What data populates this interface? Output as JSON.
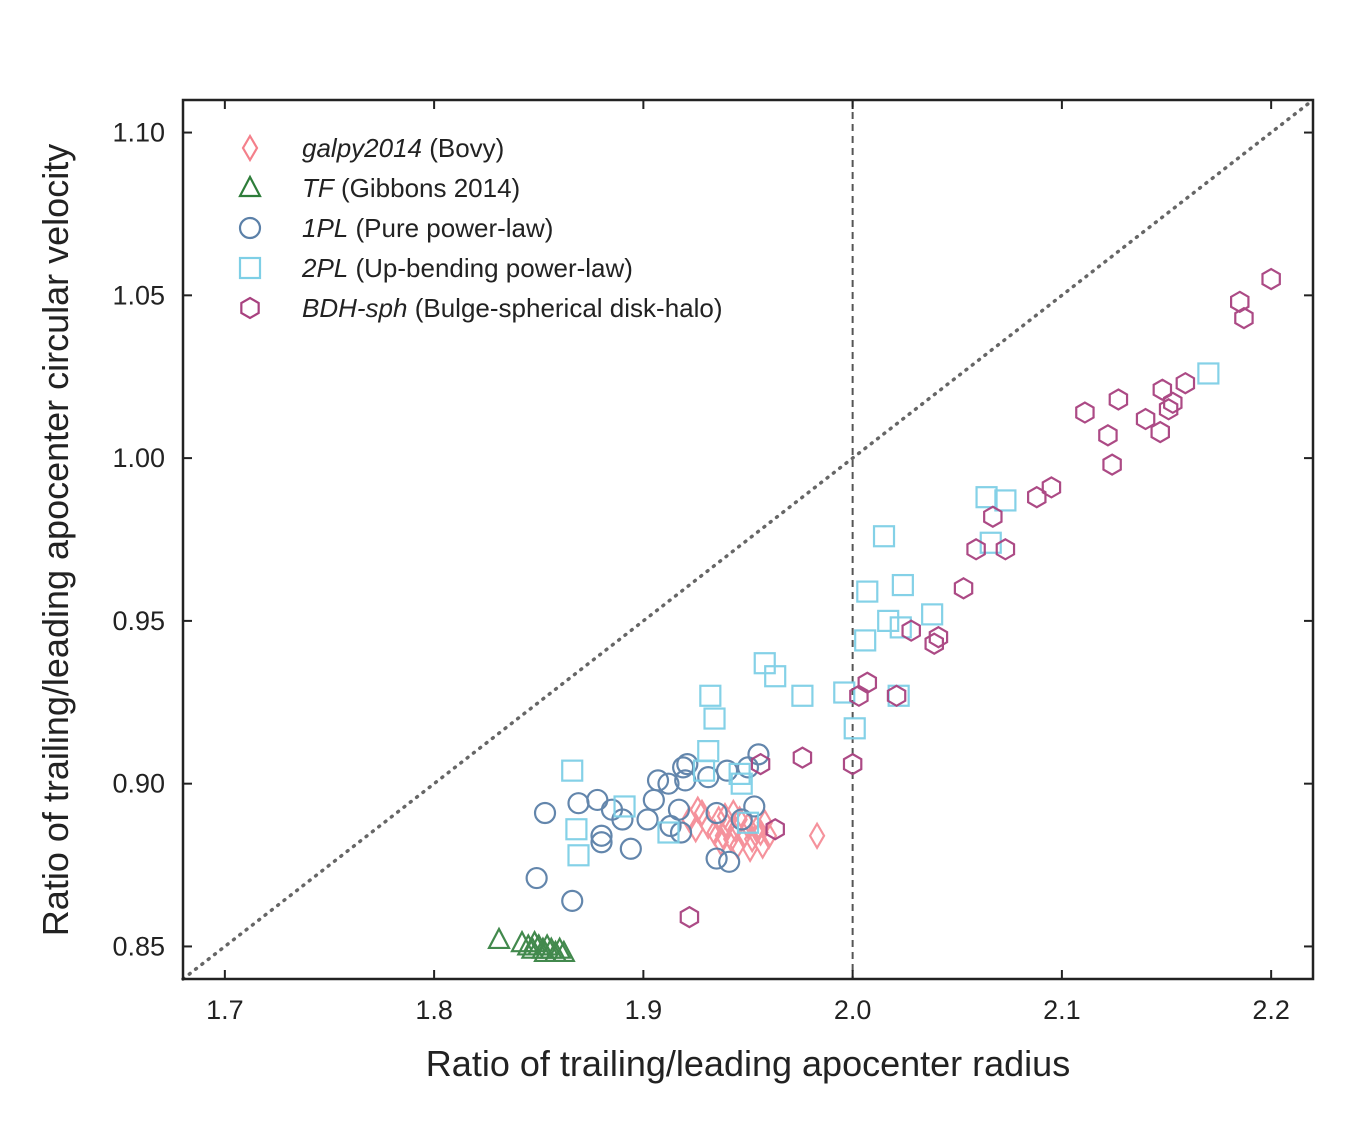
{
  "chart_data": {
    "type": "scatter",
    "xlabel": "Ratio of trailing/leading apocenter radius",
    "ylabel": "Ratio of trailing/leading apocenter circular velocity",
    "xlim": [
      1.68,
      2.22
    ],
    "ylim": [
      0.84,
      1.11
    ],
    "xticks": [
      "1.7",
      "1.8",
      "1.9",
      "2.0",
      "2.1",
      "2.2"
    ],
    "yticks": [
      "0.85",
      "0.90",
      "0.95",
      "1.00",
      "1.05",
      "1.10"
    ],
    "legend_position": "upper-left",
    "reference_lines": [
      {
        "kind": "vertical",
        "x": 2.0,
        "style": "dashed",
        "color": "#555555"
      },
      {
        "kind": "diagonal",
        "from": [
          1.68,
          0.84
        ],
        "to": [
          2.22,
          1.11
        ],
        "style": "dotted",
        "color": "#666666"
      }
    ],
    "series": [
      {
        "name": "galpy2014",
        "name_italic": "galpy2014",
        "name_suffix": "(Bovy)",
        "marker": "diamond",
        "color": "#f4808b",
        "points": [
          [
            1.922,
            0.889
          ],
          [
            1.925,
            0.886
          ],
          [
            1.928,
            0.891
          ],
          [
            1.931,
            0.887
          ],
          [
            1.934,
            0.885
          ],
          [
            1.936,
            0.889
          ],
          [
            1.938,
            0.884
          ],
          [
            1.94,
            0.887
          ],
          [
            1.942,
            0.883
          ],
          [
            1.944,
            0.886
          ],
          [
            1.946,
            0.889
          ],
          [
            1.948,
            0.884
          ],
          [
            1.95,
            0.887
          ],
          [
            1.952,
            0.883
          ],
          [
            1.954,
            0.886
          ],
          [
            1.956,
            0.885
          ],
          [
            1.958,
            0.888
          ],
          [
            1.96,
            0.884
          ],
          [
            1.937,
            0.882
          ],
          [
            1.945,
            0.881
          ],
          [
            1.939,
            0.89
          ],
          [
            1.951,
            0.88
          ],
          [
            1.926,
            0.892
          ],
          [
            1.943,
            0.891
          ],
          [
            1.957,
            0.881
          ],
          [
            1.983,
            0.884
          ]
        ]
      },
      {
        "name": "TF",
        "name_italic": "TF",
        "name_suffix": "(Gibbons 2014)",
        "marker": "triangle",
        "color": "#2e7d3a",
        "points": [
          [
            1.831,
            0.852
          ],
          [
            1.842,
            0.851
          ],
          [
            1.845,
            0.85
          ],
          [
            1.848,
            0.851
          ],
          [
            1.85,
            0.85
          ],
          [
            1.852,
            0.849
          ],
          [
            1.854,
            0.85
          ],
          [
            1.856,
            0.849
          ],
          [
            1.858,
            0.848
          ],
          [
            1.86,
            0.849
          ],
          [
            1.862,
            0.848
          ],
          [
            1.847,
            0.849
          ],
          [
            1.853,
            0.848
          ]
        ]
      },
      {
        "name": "1PL",
        "name_italic": "1PL",
        "name_suffix": "(Pure power-law)",
        "marker": "circle",
        "color": "#5b80a8",
        "points": [
          [
            1.849,
            0.871
          ],
          [
            1.853,
            0.891
          ],
          [
            1.866,
            0.864
          ],
          [
            1.869,
            0.894
          ],
          [
            1.878,
            0.895
          ],
          [
            1.88,
            0.884
          ],
          [
            1.88,
            0.882
          ],
          [
            1.885,
            0.892
          ],
          [
            1.89,
            0.889
          ],
          [
            1.894,
            0.88
          ],
          [
            1.902,
            0.889
          ],
          [
            1.905,
            0.895
          ],
          [
            1.907,
            0.901
          ],
          [
            1.912,
            0.9
          ],
          [
            1.913,
            0.887
          ],
          [
            1.917,
            0.892
          ],
          [
            1.918,
            0.885
          ],
          [
            1.919,
            0.905
          ],
          [
            1.92,
            0.901
          ],
          [
            1.921,
            0.906
          ],
          [
            1.931,
            0.902
          ],
          [
            1.935,
            0.891
          ],
          [
            1.935,
            0.877
          ],
          [
            1.94,
            0.904
          ],
          [
            1.941,
            0.876
          ],
          [
            1.947,
            0.889
          ],
          [
            1.95,
            0.905
          ],
          [
            1.953,
            0.893
          ],
          [
            1.955,
            0.909
          ]
        ]
      },
      {
        "name": "2PL",
        "name_italic": "2PL",
        "name_suffix": "(Up-bending power-law)",
        "marker": "square",
        "color": "#7ecfe6",
        "points": [
          [
            1.866,
            0.904
          ],
          [
            1.868,
            0.886
          ],
          [
            1.869,
            0.878
          ],
          [
            1.891,
            0.893
          ],
          [
            1.912,
            0.885
          ],
          [
            1.929,
            0.904
          ],
          [
            1.931,
            0.91
          ],
          [
            1.932,
            0.927
          ],
          [
            1.934,
            0.92
          ],
          [
            1.946,
            0.903
          ],
          [
            1.947,
            0.9
          ],
          [
            1.95,
            0.888
          ],
          [
            1.958,
            0.937
          ],
          [
            1.963,
            0.933
          ],
          [
            1.976,
            0.927
          ],
          [
            1.996,
            0.928
          ],
          [
            2.001,
            0.917
          ],
          [
            2.006,
            0.944
          ],
          [
            2.007,
            0.959
          ],
          [
            2.015,
            0.976
          ],
          [
            2.017,
            0.95
          ],
          [
            2.022,
            0.927
          ],
          [
            2.023,
            0.948
          ],
          [
            2.024,
            0.961
          ],
          [
            2.038,
            0.952
          ],
          [
            2.064,
            0.988
          ],
          [
            2.066,
            0.974
          ],
          [
            2.073,
            0.987
          ],
          [
            2.17,
            1.026
          ]
        ]
      },
      {
        "name": "BDH-sph",
        "name_italic": "BDH-sph",
        "name_suffix": "(Bulge-spherical disk-halo)",
        "marker": "hexagon",
        "color": "#a8417f",
        "points": [
          [
            1.922,
            0.859
          ],
          [
            1.956,
            0.906
          ],
          [
            1.963,
            0.886
          ],
          [
            1.976,
            0.908
          ],
          [
            2.0,
            0.906
          ],
          [
            2.003,
            0.927
          ],
          [
            2.007,
            0.931
          ],
          [
            2.021,
            0.927
          ],
          [
            2.028,
            0.947
          ],
          [
            2.039,
            0.943
          ],
          [
            2.041,
            0.945
          ],
          [
            2.053,
            0.96
          ],
          [
            2.059,
            0.972
          ],
          [
            2.067,
            0.982
          ],
          [
            2.073,
            0.972
          ],
          [
            2.088,
            0.988
          ],
          [
            2.095,
            0.991
          ],
          [
            2.111,
            1.014
          ],
          [
            2.122,
            1.007
          ],
          [
            2.124,
            0.998
          ],
          [
            2.127,
            1.018
          ],
          [
            2.14,
            1.012
          ],
          [
            2.147,
            1.008
          ],
          [
            2.148,
            1.021
          ],
          [
            2.151,
            1.015
          ],
          [
            2.153,
            1.017
          ],
          [
            2.159,
            1.023
          ],
          [
            2.185,
            1.048
          ],
          [
            2.187,
            1.043
          ],
          [
            2.2,
            1.055
          ]
        ]
      }
    ]
  }
}
